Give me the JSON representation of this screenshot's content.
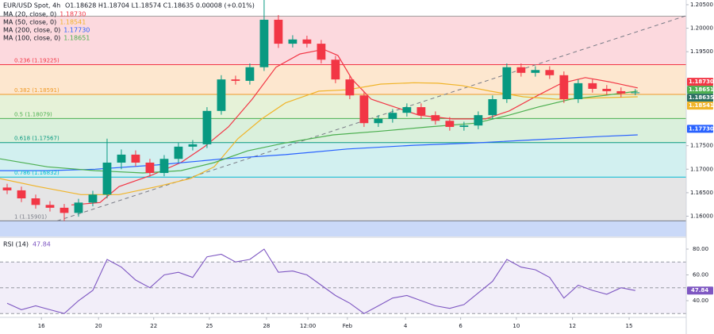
{
  "header": {
    "symbol": "EUR/USD Spot, 4h",
    "ohlc": "O1.18628 H1.18704 L1.18574 C1.18635 0.00008 (+0.01%)"
  },
  "chart_data": [
    {
      "type": "candlestick",
      "x": [
        1.5,
        4.5,
        7.5,
        10.5,
        13.5,
        16.5,
        19.5,
        22.5,
        25.5,
        28.5,
        31.5,
        34.5,
        37.5,
        40.5,
        43.5,
        46.5,
        49.5,
        52.5,
        55.5,
        58.5,
        61.5,
        64.5,
        67.5,
        70.5,
        73.5,
        76.5,
        79.5,
        82.5,
        85.5,
        88.5,
        91.5,
        94.5,
        97.5,
        100.5,
        103.5,
        106.5,
        109.5,
        112.5,
        115.5,
        118.5,
        121.5,
        124.5,
        127.5,
        130.5,
        133.5
      ],
      "open": [
        1.1661,
        1.1655,
        1.1638,
        1.1624,
        1.1618,
        1.1607,
        1.1629,
        1.1646,
        1.1714,
        1.1731,
        1.1714,
        1.1692,
        1.1722,
        1.1748,
        1.1753,
        1.1824,
        1.1891,
        1.1888,
        1.1917,
        1.2018,
        1.1967,
        1.1976,
        1.1967,
        1.1933,
        1.1891,
        1.1857,
        1.1798,
        1.1807,
        1.182,
        1.1832,
        1.1815,
        1.1803,
        1.179,
        1.1793,
        1.1815,
        1.1849,
        1.1917,
        1.1905,
        1.1911,
        1.19,
        1.1849,
        1.1883,
        1.1871,
        1.1866,
        1.18628
      ],
      "high": [
        1.1669,
        1.1663,
        1.1646,
        1.1632,
        1.1626,
        1.1637,
        1.1654,
        1.1765,
        1.1742,
        1.174,
        1.1722,
        1.173,
        1.1756,
        1.1762,
        1.1832,
        1.19,
        1.1899,
        1.1925,
        1.206,
        1.2028,
        1.1985,
        1.1984,
        1.1975,
        1.1941,
        1.1899,
        1.1865,
        1.1815,
        1.1828,
        1.184,
        1.184,
        1.1823,
        1.1811,
        1.1801,
        1.1823,
        1.1857,
        1.1925,
        1.1925,
        1.1919,
        1.1919,
        1.1908,
        1.1891,
        1.1891,
        1.1879,
        1.1874,
        1.18704
      ],
      "low": [
        1.1647,
        1.163,
        1.1616,
        1.161,
        1.159,
        1.1599,
        1.1621,
        1.1638,
        1.17,
        1.1706,
        1.1684,
        1.1685,
        1.1714,
        1.174,
        1.1745,
        1.1816,
        1.188,
        1.188,
        1.1909,
        1.1958,
        1.1959,
        1.1959,
        1.1925,
        1.1883,
        1.1849,
        1.179,
        1.179,
        1.1799,
        1.1812,
        1.1807,
        1.1795,
        1.1782,
        1.1782,
        1.1785,
        1.1807,
        1.1841,
        1.1897,
        1.1897,
        1.1892,
        1.1841,
        1.1841,
        1.1863,
        1.1858,
        1.1853,
        1.18574
      ],
      "close": [
        1.1655,
        1.1638,
        1.1624,
        1.1618,
        1.1607,
        1.1629,
        1.1646,
        1.1714,
        1.1731,
        1.1714,
        1.1692,
        1.1722,
        1.1748,
        1.1753,
        1.1824,
        1.1891,
        1.1888,
        1.1917,
        1.2018,
        1.1967,
        1.1976,
        1.1967,
        1.1933,
        1.1891,
        1.1857,
        1.1798,
        1.1807,
        1.182,
        1.1832,
        1.1815,
        1.1803,
        1.179,
        1.1793,
        1.1815,
        1.1849,
        1.1917,
        1.1905,
        1.1911,
        1.19,
        1.1849,
        1.1883,
        1.1871,
        1.1866,
        1.1861,
        1.18635
      ],
      "up_color": "#089981",
      "down_color": "#f23645",
      "last_price_label": "1.18635",
      "last_price_color": "#2b6f62",
      "xlim": [
        0,
        144.2
      ],
      "xticks": [
        {
          "value": 8.7,
          "label": "16"
        },
        {
          "value": 20.7,
          "label": "20"
        },
        {
          "value": 32.3,
          "label": "22"
        },
        {
          "value": 44,
          "label": "25"
        },
        {
          "value": 56,
          "label": "28"
        },
        {
          "value": 64.7,
          "label": "12:00"
        },
        {
          "value": 73,
          "label": "Feb"
        },
        {
          "value": 85.2,
          "label": "4"
        },
        {
          "value": 96.8,
          "label": "6"
        },
        {
          "value": 108.5,
          "label": "10"
        },
        {
          "value": 120.3,
          "label": "12"
        },
        {
          "value": 132.2,
          "label": "15"
        }
      ],
      "ylim": [
        1.1557,
        1.206
      ],
      "yticks": [
        {
          "value": 1.205,
          "label": "1.20500"
        },
        {
          "value": 1.2,
          "label": "1.20000"
        },
        {
          "value": 1.195,
          "label": "1.19500"
        },
        {
          "value": 1.175,
          "label": "1.17500"
        },
        {
          "value": 1.17,
          "label": "1.17000"
        },
        {
          "value": 1.165,
          "label": "1.16500"
        },
        {
          "value": 1.16,
          "label": "1.16000"
        }
      ],
      "series": [
        {
          "name": "MA (20, close, 0)",
          "color": "#f23645",
          "last": 1.1873,
          "last_label": "1.18730",
          "x": [
            15,
            21,
            25,
            32,
            38,
            43,
            48,
            53,
            58,
            63,
            68,
            71,
            74,
            78,
            83,
            88,
            95,
            102,
            107,
            113,
            118,
            123,
            128,
            134
          ],
          "values": [
            1.1624,
            1.1629,
            1.1663,
            1.1688,
            1.1714,
            1.1748,
            1.179,
            1.1849,
            1.1917,
            1.1945,
            1.1955,
            1.1942,
            1.1891,
            1.1849,
            1.1832,
            1.1815,
            1.1807,
            1.1807,
            1.1824,
            1.1857,
            1.1883,
            1.1895,
            1.1886,
            1.1873
          ]
        },
        {
          "name": "MA (50, close, 0)",
          "color": "#f0b429",
          "last": 1.18541,
          "last_label": "1.18541",
          "x": [
            0,
            8,
            17,
            25,
            33,
            40,
            45,
            50,
            55,
            60,
            67,
            73,
            80,
            87,
            92,
            97,
            103,
            110,
            117,
            123,
            134
          ],
          "values": [
            1.168,
            1.1663,
            1.1646,
            1.1646,
            1.1663,
            1.168,
            1.1705,
            1.1765,
            1.1807,
            1.1841,
            1.1866,
            1.1869,
            1.1881,
            1.1884,
            1.1883,
            1.1878,
            1.1866,
            1.1854,
            1.1849,
            1.1851,
            1.1854
          ]
        },
        {
          "name": "MA (200, close, 0)",
          "color": "#2962ff",
          "last": 1.1773,
          "last_label": "1.17730",
          "x": [
            0,
            10,
            20,
            33,
            47,
            60,
            73,
            87,
            100,
            113,
            127,
            134
          ],
          "values": [
            1.1697,
            1.1697,
            1.17,
            1.1709,
            1.1722,
            1.1731,
            1.1743,
            1.1751,
            1.1756,
            1.1763,
            1.177,
            1.1773
          ]
        },
        {
          "name": "MA (100, close, 0)",
          "color": "#4caf50",
          "last": 1.18651,
          "last_label": "1.18651",
          "x": [
            0,
            10,
            20,
            30,
            38,
            45,
            52,
            60,
            70,
            80,
            90,
            100,
            107,
            113,
            120,
            127,
            134
          ],
          "values": [
            1.1722,
            1.1705,
            1.1697,
            1.1692,
            1.1697,
            1.1714,
            1.1739,
            1.1756,
            1.1773,
            1.1781,
            1.179,
            1.1798,
            1.1815,
            1.1832,
            1.1849,
            1.1857,
            1.1866
          ]
        }
      ],
      "fib_levels": [
        {
          "price": 1.20257,
          "color": "#9e9e9e",
          "fill": "#fcd9de"
        },
        {
          "price": 1.19225,
          "label": "0.236 (1.19225)",
          "color": "#f23645",
          "fill": "#fde7cf"
        },
        {
          "price": 1.18591,
          "label": "0.382 (1.18591)",
          "color": "#f09a27",
          "fill": "#e6f2d8"
        },
        {
          "price": 1.18079,
          "label": "0.5 (1.18079)",
          "color": "#4caf50",
          "fill": "#daf0dc"
        },
        {
          "price": 1.17567,
          "label": "0.618 (1.17567)",
          "color": "#089981",
          "fill": "#d2f0f0"
        },
        {
          "price": 1.16832,
          "label": "0.786 (1.16832)",
          "color": "#00bcd4",
          "fill": "#e5e5e6"
        },
        {
          "price": 1.15901,
          "label": "1 (1.15901)",
          "color": "#787b86",
          "fill": "#cad9f8"
        }
      ],
      "trendline": {
        "x": [
          12,
          144
        ],
        "values": [
          1.159,
          1.2026
        ],
        "color": "#787b86"
      }
    },
    {
      "type": "line",
      "title": "RSI (14)",
      "color": "#7e57c2",
      "value_label": "47.84",
      "x": [
        1.5,
        4.5,
        7.5,
        10.5,
        13.5,
        16.5,
        19.5,
        22.5,
        25.5,
        28.5,
        31.5,
        34.5,
        37.5,
        40.5,
        43.5,
        46.5,
        49.5,
        52.5,
        55.5,
        58.5,
        61.5,
        64.5,
        67.5,
        70.5,
        73.5,
        76.5,
        79.5,
        82.5,
        85.5,
        88.5,
        91.5,
        94.5,
        97.5,
        100.5,
        103.5,
        106.5,
        109.5,
        112.5,
        115.5,
        118.5,
        121.5,
        124.5,
        127.5,
        130.5,
        133.5
      ],
      "values": [
        38,
        33,
        36,
        33,
        30,
        40,
        48,
        72,
        66,
        56,
        50,
        60,
        62,
        58,
        74,
        76,
        70,
        72,
        80,
        62,
        63,
        60,
        52,
        44,
        38,
        30,
        36,
        42,
        44,
        40,
        36,
        34,
        37,
        46,
        55,
        72,
        66,
        64,
        58,
        42,
        52,
        48,
        45,
        50,
        47.84
      ],
      "ylim": [
        28.3,
        88.6
      ],
      "yticks": [
        {
          "value": 80,
          "label": "80.00"
        },
        {
          "value": 60,
          "label": "60.00"
        },
        {
          "value": 40,
          "label": "40.00"
        }
      ],
      "band": [
        30,
        70
      ],
      "midline": 50
    }
  ]
}
